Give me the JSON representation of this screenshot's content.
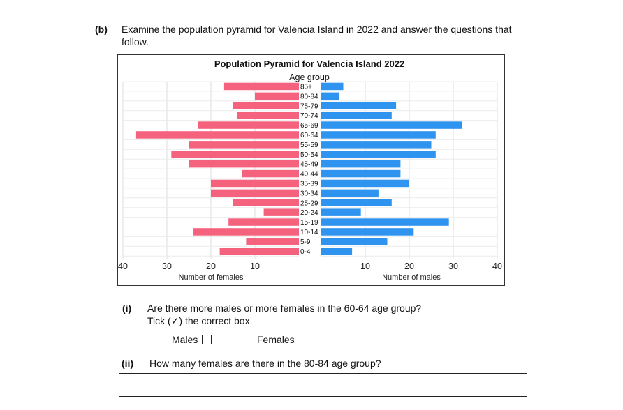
{
  "question": {
    "part_label": "(b)",
    "intro_line1": "Examine the population pyramid for Valencia Island in 2022 and answer the questions that",
    "intro_line2": "follow."
  },
  "sub_i": {
    "label": "(i)",
    "text_line1": "Are there more males or more females in the 60-64 age group?",
    "text_line2": "Tick (✓) the correct box.",
    "option_males": "Males",
    "option_females": "Females"
  },
  "sub_ii": {
    "label": "(ii)",
    "text": "How many females are there in the 80-84 age group?"
  },
  "chart_data": {
    "type": "bar",
    "orientation": "horizontal-pyramid",
    "title": "Population Pyramid for Valencia Island 2022",
    "category_axis_label": "Age group",
    "categories": [
      "85+",
      "80-84",
      "75-79",
      "70-74",
      "65-69",
      "60-64",
      "55-59",
      "50-54",
      "45-49",
      "40-44",
      "35-39",
      "30-34",
      "25-29",
      "20-24",
      "15-19",
      "10-14",
      "5-9",
      "0-4"
    ],
    "series": [
      {
        "name": "Number of females",
        "side": "left",
        "color": "#f4627e",
        "values": [
          17,
          10,
          15,
          14,
          23,
          37,
          25,
          29,
          25,
          13,
          20,
          20,
          15,
          8,
          16,
          24,
          12,
          18
        ]
      },
      {
        "name": "Number of males",
        "side": "right",
        "color": "#2f93f0",
        "values": [
          5,
          4,
          17,
          16,
          32,
          26,
          25,
          26,
          18,
          18,
          20,
          13,
          16,
          9,
          29,
          21,
          15,
          7
        ]
      }
    ],
    "left_ticks": [
      "40",
      "30",
      "20",
      "10"
    ],
    "right_ticks": [
      "10",
      "20",
      "30",
      "40"
    ],
    "xlim": [
      0,
      40
    ],
    "xlabel_left": "Number of females",
    "xlabel_right": "Number of males",
    "grid": true
  }
}
